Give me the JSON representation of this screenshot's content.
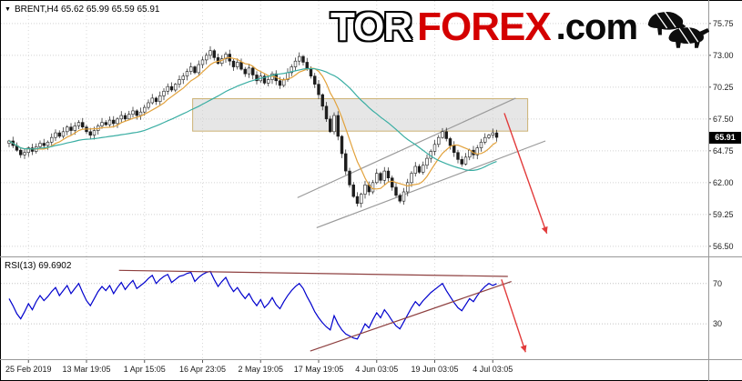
{
  "header": {
    "symbol_info": "BRENT,H4 65.62 65.99 65.59 65.91",
    "dropdown_icon": "symbol-dropdown"
  },
  "logo": {
    "part1": "TOR",
    "part2": "FOREX",
    "part3": ".com",
    "icon": "bull-bear-icon",
    "red": "#d40000",
    "black": "#0a0a0a"
  },
  "price_tag": "65.91",
  "chart_data": {
    "type": "candlestick",
    "title": "BRENT H4 forecast chart with RSI indicator",
    "legend_position": "none",
    "grid": "dotted",
    "x_axis_labels": [
      {
        "label": "25 Feb 2019",
        "index": 5
      },
      {
        "label": "13 Mar 19:05",
        "index": 20
      },
      {
        "label": "1 Apr 15:05",
        "index": 35
      },
      {
        "label": "16 Apr 23:05",
        "index": 50
      },
      {
        "label": "2 May 19:05",
        "index": 65
      },
      {
        "label": "17 May 19:05",
        "index": 80
      },
      {
        "label": "4 Jun 03:05",
        "index": 95
      },
      {
        "label": "19 Jun 03:05",
        "index": 110
      },
      {
        "label": "4 Jul 03:05",
        "index": 125
      }
    ],
    "main_pane": {
      "ylim": [
        55.7,
        77.7
      ],
      "y_ticks": [
        75.75,
        73.0,
        70.25,
        67.5,
        64.75,
        62.0,
        59.25,
        56.5
      ],
      "last_price": 65.91,
      "candle_up_color": "#ffffff",
      "candle_down_color": "#1c1c1c",
      "candle_outline_color": "#1c1c1c",
      "closes": [
        65.6,
        65.2,
        64.8,
        64.4,
        64.6,
        65.0,
        64.7,
        65.1,
        65.4,
        65.2,
        65.5,
        65.9,
        66.3,
        66.0,
        66.4,
        66.8,
        66.5,
        66.9,
        67.2,
        66.8,
        66.4,
        66.1,
        66.5,
        66.9,
        67.2,
        67.0,
        67.4,
        67.1,
        67.5,
        67.8,
        67.5,
        67.9,
        68.2,
        67.8,
        68.1,
        68.5,
        68.9,
        69.3,
        69.0,
        69.5,
        69.9,
        70.3,
        70.0,
        70.5,
        70.9,
        71.2,
        71.6,
        72.0,
        71.5,
        72.2,
        72.6,
        73.0,
        73.4,
        72.8,
        72.3,
        72.7,
        73.1,
        72.5,
        72.0,
        72.4,
        71.8,
        71.4,
        71.9,
        71.3,
        70.8,
        71.2,
        70.6,
        70.9,
        71.4,
        70.8,
        70.4,
        70.9,
        71.5,
        72.0,
        72.5,
        72.9,
        72.4,
        71.8,
        71.2,
        70.5,
        69.6,
        68.6,
        67.5,
        66.4,
        67.8,
        66.0,
        64.5,
        63.0,
        61.8,
        60.8,
        60.2,
        61.0,
        61.8,
        61.2,
        62.0,
        62.8,
        62.2,
        63.0,
        62.4,
        61.6,
        60.9,
        60.4,
        61.2,
        62.0,
        62.8,
        63.4,
        62.9,
        63.5,
        64.1,
        64.7,
        65.3,
        65.9,
        66.4,
        65.8,
        65.2,
        64.6,
        64.0,
        63.6,
        64.2,
        64.8,
        64.4,
        65.0,
        65.5,
        65.9,
        66.1,
        66.3,
        65.91
      ],
      "moving_averages": [
        {
          "name": "fast-ma",
          "period": 8,
          "color": "#e2a23c"
        },
        {
          "name": "slow-ma",
          "period": 34,
          "color": "#3aaea3"
        }
      ],
      "annotations": {
        "resistance_zone": {
          "x1f": 0.272,
          "x2f": 0.745,
          "price_top": 69.25,
          "price_bottom": 66.45,
          "fill": "#d2d2d2",
          "stroke": "#ccb274"
        },
        "channel_upper": {
          "x1f": 0.42,
          "p1": 60.7,
          "x2f": 0.728,
          "p2": 69.3,
          "color": "#9a9a9a"
        },
        "channel_lower": {
          "x1f": 0.447,
          "p1": 58.1,
          "x2f": 0.77,
          "p2": 65.6,
          "color": "#9a9a9a"
        },
        "forecast_arrow": {
          "x1f": 0.712,
          "p1": 68.0,
          "x2f": 0.772,
          "p2": 57.6,
          "color": "#e23b3b"
        }
      }
    },
    "rsi_pane": {
      "label": "RSI(13) 69.6902",
      "ylim": [
        -5,
        95
      ],
      "levels": [
        70,
        30
      ],
      "line_color": "#0000cd",
      "values": [
        55,
        48,
        40,
        35,
        42,
        50,
        44,
        52,
        58,
        53,
        57,
        62,
        66,
        58,
        63,
        68,
        60,
        65,
        70,
        61,
        53,
        48,
        55,
        62,
        67,
        63,
        68,
        60,
        66,
        71,
        64,
        69,
        73,
        65,
        68,
        71,
        75,
        78,
        70,
        74,
        77,
        79,
        71,
        74,
        77,
        78,
        80,
        81,
        72,
        76,
        79,
        81,
        82,
        74,
        67,
        72,
        76,
        68,
        62,
        66,
        60,
        55,
        60,
        53,
        48,
        54,
        46,
        50,
        56,
        49,
        45,
        52,
        58,
        63,
        67,
        70,
        65,
        57,
        50,
        42,
        36,
        31,
        27,
        24,
        38,
        30,
        24,
        20,
        18,
        16,
        15,
        22,
        30,
        26,
        34,
        41,
        36,
        44,
        39,
        33,
        28,
        25,
        32,
        39,
        46,
        52,
        48,
        53,
        57,
        61,
        64,
        67,
        70,
        63,
        57,
        51,
        46,
        43,
        49,
        55,
        52,
        58,
        63,
        67,
        70,
        68,
        69.69
      ],
      "annotations": {
        "trend_upper": {
          "x1f": 0.168,
          "r1": 83,
          "x2f": 0.717,
          "r2": 77,
          "color": "#8e4040"
        },
        "trend_lower": {
          "x1f": 0.438,
          "r1": 3,
          "x2f": 0.722,
          "r2": 72,
          "color": "#8e4040"
        },
        "forecast_arrow": {
          "x1f": 0.708,
          "r1": 74,
          "x2f": 0.742,
          "r2": 2,
          "color": "#e23b3b"
        }
      }
    }
  }
}
